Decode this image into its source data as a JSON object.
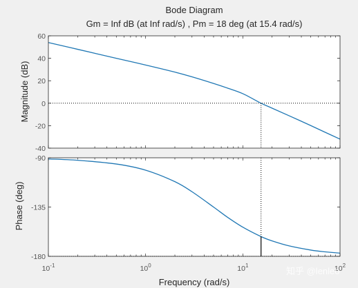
{
  "chart_data": {
    "type": "line",
    "title": "Bode Diagram",
    "subtitle": "Gm = Inf dB (at Inf rad/s) ,  Pm = 18 deg (at 15.4 rad/s)",
    "xlabel": "Frequency  (rad/s)",
    "xscale": "log",
    "xlim": [
      0.1,
      100
    ],
    "x_ticks": [
      {
        "value": 0.1,
        "base": "10",
        "exp": "-1"
      },
      {
        "value": 1,
        "base": "10",
        "exp": "0"
      },
      {
        "value": 10,
        "base": "10",
        "exp": "1"
      },
      {
        "value": 100,
        "base": "10",
        "exp": "2"
      }
    ],
    "grid": false,
    "crossover_frequency": 15.4,
    "phase_margin_deg": 18,
    "panels": [
      {
        "name": "magnitude",
        "ylabel": "Magnitude (dB)",
        "ylim": [
          -40,
          60
        ],
        "yticks": [
          "60",
          "40",
          "20",
          "0",
          "-20",
          "-40"
        ],
        "ytick_values": [
          60,
          40,
          20,
          0,
          -20,
          -40
        ],
        "reference_line": 0,
        "series": [
          {
            "color": "#1f77b4",
            "x": [
              0.1,
              0.2,
              0.5,
              1,
              2,
              3,
              5,
              7,
              10,
              15.4,
              20,
              30,
              50,
              70,
              100
            ],
            "y": [
              54,
              48,
              40,
              34,
              27.7,
              23.5,
              17.6,
              13.4,
              8.5,
              0,
              -4.4,
              -11.2,
              -19.9,
              -25.8,
              -32
            ]
          }
        ]
      },
      {
        "name": "phase",
        "ylabel": "Phase (deg)",
        "ylim": [
          -180,
          -90
        ],
        "yticks": [
          "-90",
          "-135",
          "-180"
        ],
        "ytick_values": [
          -90,
          -135,
          -180
        ],
        "reference_line": -180,
        "series": [
          {
            "color": "#1f77b4",
            "x": [
              0.1,
              0.2,
              0.5,
              1,
              2,
              3,
              5,
              7,
              10,
              15.4,
              20,
              30,
              50,
              70,
              100
            ],
            "y": [
              -91.1,
              -92.3,
              -95.7,
              -101.3,
              -111.8,
              -121,
              -135,
              -144.5,
              -153.4,
              -162,
              -165.9,
              -170.5,
              -174.3,
              -175.9,
              -177.1
            ]
          }
        ]
      }
    ]
  },
  "watermark": "知乎 @lenleo",
  "colors": {
    "line": "#1f77b4",
    "axis": "#262626",
    "background": "#f0f0f0",
    "plot_background": "#ffffff"
  }
}
